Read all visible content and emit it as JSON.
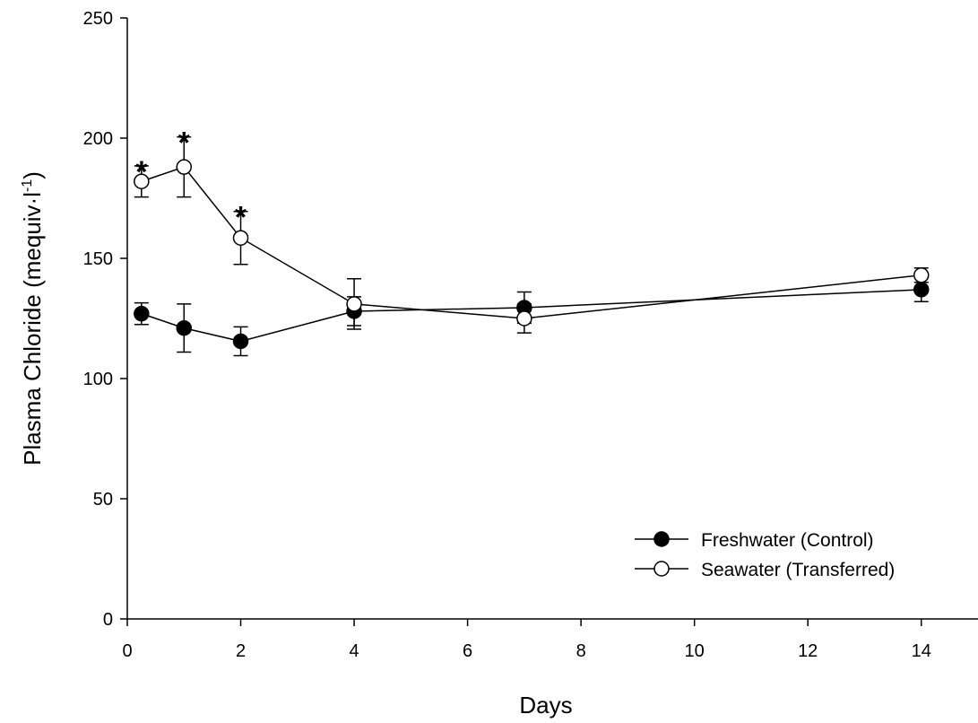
{
  "chart_data": {
    "type": "line",
    "xlabel": "Days",
    "ylabel_main": "Plasma Chloride (mequiv·l",
    "ylabel_sup": "-1",
    "ylabel_close": ")",
    "xlim": [
      0,
      15
    ],
    "ylim": [
      0,
      250
    ],
    "xticks": [
      "0",
      "2",
      "4",
      "6",
      "8",
      "10",
      "12",
      "14"
    ],
    "yticks": [
      "0",
      "50",
      "100",
      "150",
      "200",
      "250"
    ],
    "grid": false,
    "legend_position": "lower-right",
    "series": [
      {
        "name": "Freshwater (Control)",
        "marker": "filled-circle",
        "x": [
          0.25,
          1,
          2,
          4,
          7,
          14
        ],
        "y": [
          127,
          121,
          115.5,
          128,
          129.5,
          137
        ],
        "error": [
          4.5,
          10,
          6,
          6,
          6.5,
          5
        ]
      },
      {
        "name": "Seawater (Transferred)",
        "marker": "open-circle",
        "x": [
          0.25,
          1,
          2,
          4,
          7,
          14
        ],
        "y": [
          182,
          188,
          158.5,
          131,
          125,
          143
        ],
        "error": [
          6.5,
          12.5,
          11,
          10.5,
          6,
          3
        ]
      }
    ],
    "annotations": [
      {
        "text": "*",
        "x": 0.25,
        "y": 188.5
      },
      {
        "text": "*",
        "x": 1,
        "y": 200.5
      },
      {
        "text": "*",
        "x": 2,
        "y": 169.5
      }
    ]
  }
}
